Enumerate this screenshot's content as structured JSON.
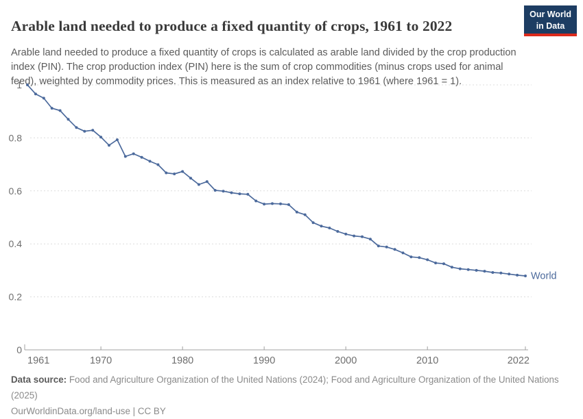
{
  "header": {
    "title": "Arable land needed to produce a fixed quantity of crops, 1961 to 2022",
    "logo": {
      "line1": "Our World",
      "line2": "in Data",
      "bg_color": "#1d3d63",
      "accent_color": "#dc2a1c"
    }
  },
  "subtitle": "Arable land needed to produce a fixed quantity of crops is calculated as arable land divided by the crop production index (PIN). The crop production index (PIN) here is the sum of crop commodities (minus crops used for animal feed), weighted by commodity prices. This is measured as an index relative to 1961 (where 1961 = 1).",
  "chart_data": {
    "type": "line",
    "title": "Arable land needed to produce a fixed quantity of crops, 1961 to 2022",
    "xlabel": "",
    "ylabel": "",
    "xlim": [
      1961,
      2022
    ],
    "ylim": [
      0,
      1
    ],
    "grid": "horizontal-dashed",
    "x_start_year": 1961,
    "x_ticks": [
      {
        "v": 1961,
        "label": "1961"
      },
      {
        "v": 1970,
        "label": "1970"
      },
      {
        "v": 1980,
        "label": "1980"
      },
      {
        "v": 1990,
        "label": "1990"
      },
      {
        "v": 2000,
        "label": "2000"
      },
      {
        "v": 2010,
        "label": "2010"
      },
      {
        "v": 2022,
        "label": "2022"
      }
    ],
    "y_ticks": [
      {
        "v": 0,
        "label": "0"
      },
      {
        "v": 0.2,
        "label": "0.2"
      },
      {
        "v": 0.4,
        "label": "0.4"
      },
      {
        "v": 0.6,
        "label": "0.6"
      },
      {
        "v": 0.8,
        "label": "0.8"
      },
      {
        "v": 1,
        "label": "1"
      }
    ],
    "series": [
      {
        "name": "World",
        "color": "#4c6a9c",
        "end_label": "World",
        "values": [
          1.0,
          0.966,
          0.95,
          0.912,
          0.903,
          0.87,
          0.839,
          0.825,
          0.829,
          0.803,
          0.772,
          0.793,
          0.73,
          0.74,
          0.727,
          0.712,
          0.699,
          0.668,
          0.664,
          0.673,
          0.648,
          0.624,
          0.635,
          0.602,
          0.599,
          0.593,
          0.589,
          0.587,
          0.562,
          0.55,
          0.552,
          0.551,
          0.548,
          0.52,
          0.51,
          0.48,
          0.467,
          0.46,
          0.447,
          0.437,
          0.43,
          0.427,
          0.418,
          0.392,
          0.388,
          0.379,
          0.366,
          0.351,
          0.348,
          0.34,
          0.328,
          0.325,
          0.312,
          0.306,
          0.303,
          0.3,
          0.297,
          0.292,
          0.29,
          0.286,
          0.282,
          0.279
        ]
      }
    ]
  },
  "footer": {
    "data_source_label": "Data source:",
    "data_source_text": " Food and Agriculture Organization of the United Nations (2024); Food and Agriculture Organization of the United Nations (2025)",
    "link_line": "OurWorldinData.org/land-use | CC BY"
  },
  "colors": {
    "title": "#3a3a3a",
    "subtitle": "#5b5b5b",
    "axis_label": "#6e6e6e",
    "grid_line": "#dcdcdc",
    "axis_line": "#a0a0a0",
    "series_world": "#4c6a9c"
  }
}
